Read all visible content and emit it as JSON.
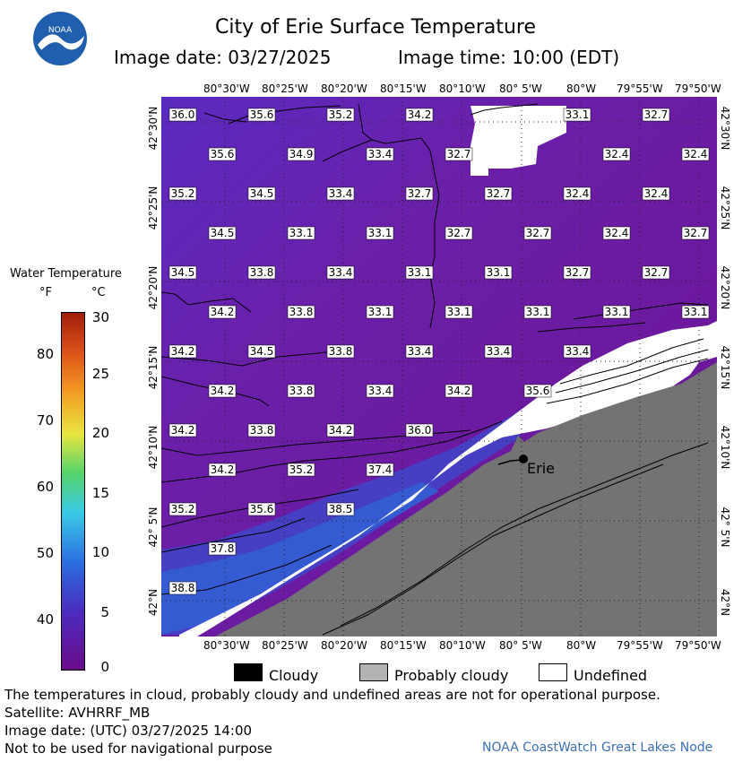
{
  "header": {
    "title": "City of Erie Surface Temperature",
    "image_date": "Image date: 03/27/2025",
    "image_time": "Image time: 10:00 (EDT)",
    "logo_text": "NOAA"
  },
  "axes": {
    "longitudes": [
      "80°30'W",
      "80°25'W",
      "80°20'W",
      "80°15'W",
      "80°10'W",
      "80° 5'W",
      "80°W",
      "79°55'W",
      "79°50'W"
    ],
    "latitudes": [
      "42°30'N",
      "42°25'N",
      "42°20'N",
      "42°15'N",
      "42°10'N",
      "42° 5'N",
      "42°N"
    ]
  },
  "legend": {
    "title": "Water Temperature",
    "unit_f": "°F",
    "unit_c": "°C",
    "f_ticks": [
      "80",
      "70",
      "60",
      "50",
      "40"
    ],
    "c_ticks": [
      "30",
      "25",
      "20",
      "15",
      "10",
      "5",
      "0"
    ],
    "colors": [
      "#6a0b8a",
      "#4c2bbd",
      "#2b6de0",
      "#39c9e6",
      "#54d36b",
      "#e8e640",
      "#f39a22",
      "#e0571a",
      "#a11d0c"
    ]
  },
  "map": {
    "city": "Erie",
    "water_color": "#6a1b9a",
    "land_color": "#737373",
    "temperature_labels": [
      {
        "row": 0,
        "values": [
          "36.0",
          "35.6",
          "35.2",
          "34.2",
          "",
          "33.1",
          "32.7"
        ]
      },
      {
        "row": 1,
        "values": [
          "35.6",
          "34.9",
          "33.4",
          "32.7",
          "",
          "32.4",
          "32.4"
        ]
      },
      {
        "row": 2,
        "values": [
          "35.2",
          "34.5",
          "33.4",
          "32.7",
          "32.7",
          "32.4",
          "32.4"
        ]
      },
      {
        "row": 3,
        "values": [
          "34.5",
          "33.1",
          "33.1",
          "32.7",
          "32.7",
          "32.4",
          "32.7"
        ]
      },
      {
        "row": 4,
        "values": [
          "34.5",
          "33.8",
          "33.4",
          "33.1",
          "33.1",
          "32.7",
          "32.7"
        ]
      },
      {
        "row": 5,
        "values": [
          "34.2",
          "33.8",
          "33.1",
          "33.1",
          "33.1",
          "33.1",
          "33.1"
        ]
      },
      {
        "row": 6,
        "values": [
          "34.2",
          "34.5",
          "33.8",
          "33.4",
          "33.4",
          "33.4"
        ]
      },
      {
        "row": 7,
        "values": [
          "34.2",
          "33.8",
          "33.4",
          "34.2",
          "35.6"
        ]
      },
      {
        "row": 8,
        "values": [
          "34.2",
          "33.8",
          "34.2",
          "36.0"
        ]
      },
      {
        "row": 9,
        "values": [
          "34.2",
          "35.2",
          "37.4"
        ]
      },
      {
        "row": 10,
        "values": [
          "35.2",
          "35.6",
          "38.5"
        ]
      },
      {
        "row": 11,
        "values": [
          "37.8"
        ]
      },
      {
        "row": 12,
        "values": [
          "38.8"
        ]
      }
    ]
  },
  "key": {
    "cloudy": "Cloudy",
    "probably_cloudy": "Probably cloudy",
    "undefined": "Undefined"
  },
  "footer": {
    "note": "The temperatures in cloud, probably cloudy and undefined areas are not for operational purpose.",
    "satellite": "Satellite: AVHRRF_MB",
    "utc_date": "Image date: (UTC) 03/27/2025  14:00",
    "nav": "Not to be used for navigational purpose",
    "credit": "NOAA CoastWatch Great Lakes Node"
  }
}
